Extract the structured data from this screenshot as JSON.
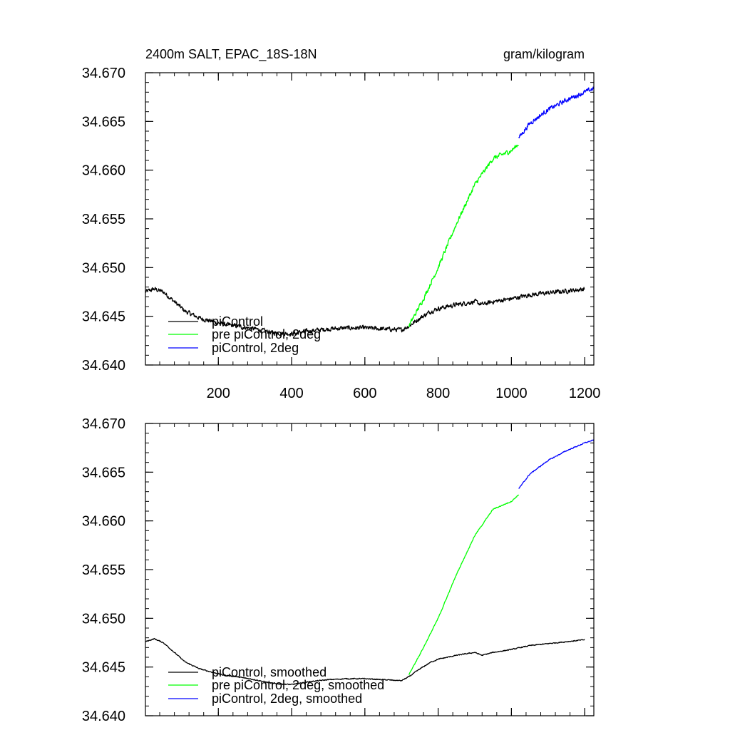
{
  "chart_data": [
    {
      "type": "line",
      "title": "2400m SALT, EPAC_18S-18N",
      "units": "gram/kilogram",
      "xlim": [
        1,
        1225
      ],
      "ylim": [
        34.64,
        34.67
      ],
      "x_ticks": [
        200,
        400,
        600,
        800,
        1000,
        1200
      ],
      "x_tick_labels": [
        "200",
        "400",
        "600",
        "800",
        "1000",
        "1200"
      ],
      "y_ticks": [
        34.64,
        34.645,
        34.65,
        34.655,
        34.66,
        34.665,
        34.67
      ],
      "y_tick_labels": [
        "34.640",
        "34.645",
        "34.650",
        "34.655",
        "34.660",
        "34.665",
        "34.670"
      ],
      "noise": 0.00035,
      "legend_position": "bottom-left",
      "series": [
        {
          "name": "piControl",
          "color": "#000000",
          "x": [
            1,
            25,
            50,
            80,
            110,
            150,
            180,
            210,
            250,
            300,
            350,
            400,
            450,
            500,
            550,
            600,
            650,
            700,
            720,
            750,
            780,
            800,
            850,
            900,
            920,
            950,
            1000,
            1050,
            1100,
            1150,
            1200
          ],
          "y": [
            34.6475,
            34.6478,
            34.6475,
            34.6465,
            34.6455,
            34.6448,
            34.6445,
            34.6442,
            34.644,
            34.6437,
            34.6433,
            34.6432,
            34.6435,
            34.6437,
            34.6438,
            34.6438,
            34.6437,
            34.6436,
            34.644,
            34.6448,
            34.6455,
            34.6458,
            34.6462,
            34.6465,
            34.6462,
            34.6465,
            34.6468,
            34.6472,
            34.6474,
            34.6476,
            34.6478
          ]
        },
        {
          "name": "pre piControl, 2deg",
          "color": "#00ff00",
          "x": [
            720,
            760,
            800,
            850,
            900,
            950,
            1000,
            1020
          ],
          "y": [
            34.644,
            34.6468,
            34.65,
            34.6545,
            34.6585,
            34.6612,
            34.662,
            34.6627
          ]
        },
        {
          "name": "piControl, 2deg",
          "color": "#0000ff",
          "x": [
            1020,
            1050,
            1100,
            1150,
            1200,
            1225
          ],
          "y": [
            34.6633,
            34.6648,
            34.6662,
            34.6672,
            34.668,
            34.6684
          ]
        }
      ]
    },
    {
      "type": "line",
      "xlim": [
        1,
        1225
      ],
      "ylim": [
        34.64,
        34.67
      ],
      "x_ticks": [
        200,
        400,
        600,
        800,
        1000,
        1200
      ],
      "y_ticks": [
        34.64,
        34.645,
        34.65,
        34.655,
        34.66,
        34.665,
        34.67
      ],
      "y_tick_labels": [
        "34.640",
        "34.645",
        "34.650",
        "34.655",
        "34.660",
        "34.665",
        "34.670"
      ],
      "noise": 8e-05,
      "legend_position": "bottom-left",
      "series": [
        {
          "name": "piControl, smoothed",
          "color": "#000000",
          "x": [
            1,
            25,
            50,
            80,
            110,
            150,
            180,
            210,
            250,
            300,
            350,
            400,
            450,
            500,
            550,
            600,
            650,
            700,
            720,
            750,
            780,
            800,
            850,
            900,
            920,
            950,
            1000,
            1050,
            1100,
            1150,
            1200
          ],
          "y": [
            34.6476,
            34.6479,
            34.6475,
            34.6465,
            34.6455,
            34.6448,
            34.6445,
            34.6442,
            34.644,
            34.6437,
            34.6433,
            34.6432,
            34.6435,
            34.6437,
            34.6438,
            34.6438,
            34.6437,
            34.6436,
            34.644,
            34.6448,
            34.6455,
            34.6458,
            34.6462,
            34.6465,
            34.6462,
            34.6465,
            34.6468,
            34.6472,
            34.6474,
            34.6476,
            34.6478
          ]
        },
        {
          "name": "pre piControl, 2deg, smoothed",
          "color": "#00ff00",
          "x": [
            720,
            760,
            800,
            850,
            900,
            950,
            1000,
            1020
          ],
          "y": [
            34.6442,
            34.647,
            34.65,
            34.6545,
            34.6585,
            34.6612,
            34.662,
            34.6627
          ]
        },
        {
          "name": "piControl, 2deg, smoothed",
          "color": "#0000ff",
          "x": [
            1020,
            1050,
            1100,
            1150,
            1200,
            1225
          ],
          "y": [
            34.6633,
            34.6648,
            34.6662,
            34.6672,
            34.668,
            34.6683
          ]
        }
      ]
    }
  ]
}
